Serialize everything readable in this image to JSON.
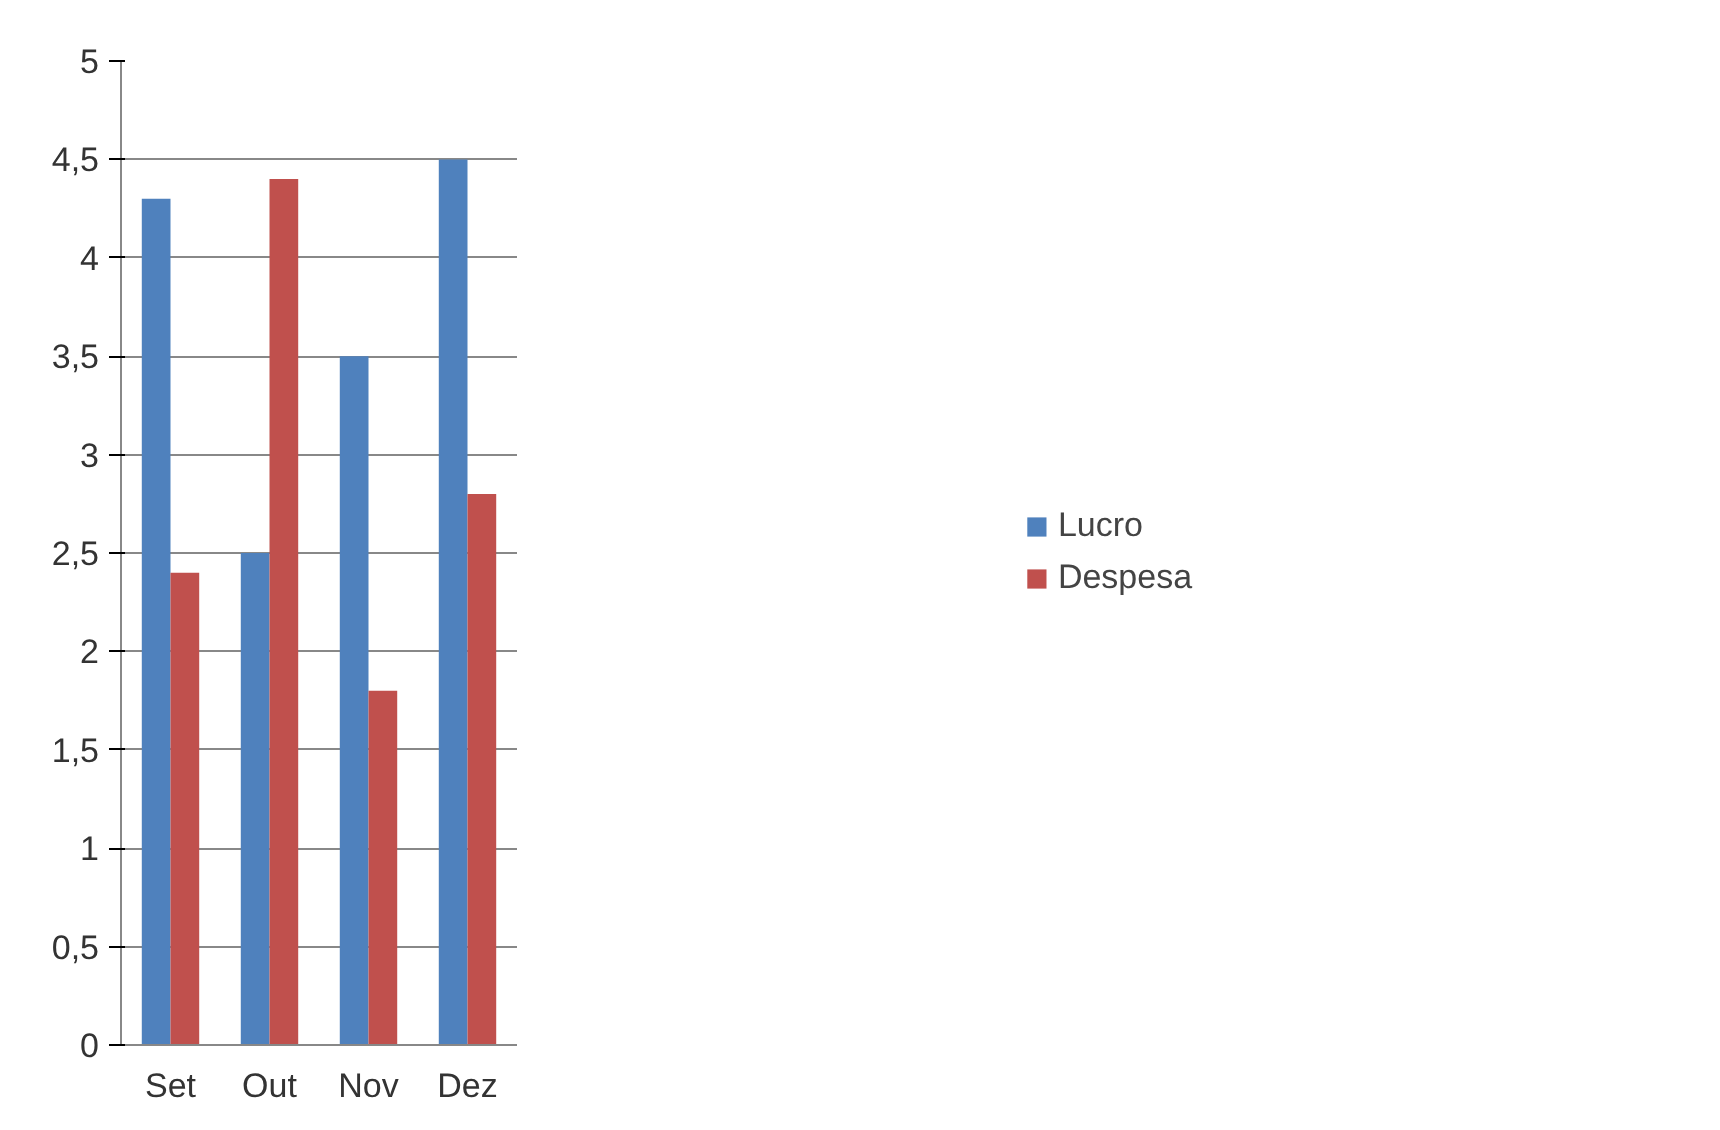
{
  "chart_data": {
    "type": "bar",
    "categories": [
      "Set",
      "Out",
      "Nov",
      "Dez"
    ],
    "series": [
      {
        "name": "Lucro",
        "color": "#4f81bd",
        "values": [
          4.3,
          2.5,
          3.5,
          4.5
        ]
      },
      {
        "name": "Despesa",
        "color": "#c0504d",
        "values": [
          2.4,
          4.4,
          1.8,
          2.8
        ]
      }
    ],
    "ylim": [
      0,
      5
    ],
    "yticks": [
      0,
      {
        "value": 0.5,
        "label": "0,5"
      },
      1,
      {
        "value": 1.5,
        "label": "1,5"
      },
      2,
      {
        "value": 2.5,
        "label": "2,5"
      },
      3,
      {
        "value": 3.5,
        "label": "3,5"
      },
      4,
      {
        "value": 4.5,
        "label": "4,5"
      },
      5
    ],
    "grid": "y",
    "legend": "right"
  }
}
